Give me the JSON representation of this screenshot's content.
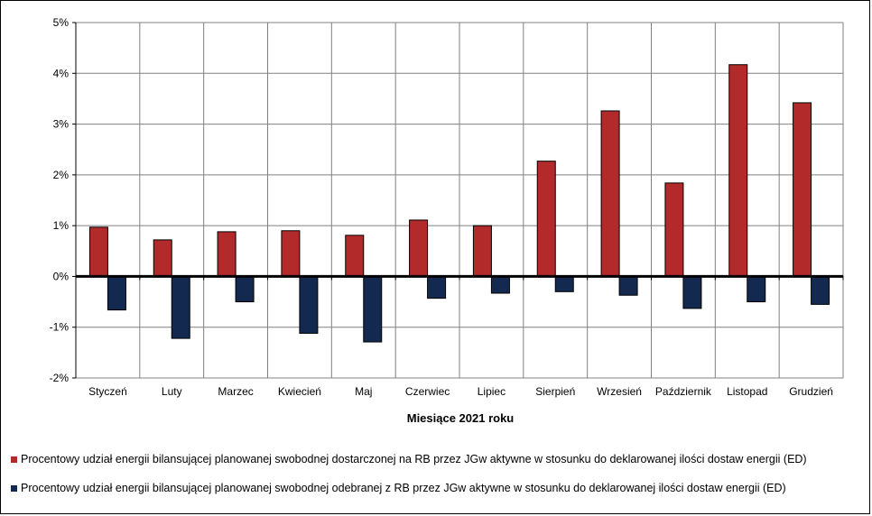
{
  "chart_data": {
    "type": "bar",
    "title": "",
    "xlabel": "Miesiące 2021 roku",
    "ylabel": "",
    "ylim": [
      -2,
      5
    ],
    "yticks": [
      "5%",
      "4%",
      "3%",
      "2%",
      "1%",
      "0%",
      "-1%",
      "-2%"
    ],
    "ytick_values": [
      5,
      4,
      3,
      2,
      1,
      0,
      -1,
      -2
    ],
    "grid": true,
    "legend_position": "bottom",
    "categories": [
      "Styczeń",
      "Luty",
      "Marzec",
      "Kwiecień",
      "Maj",
      "Czerwiec",
      "Lipiec",
      "Sierpień",
      "Wrzesień",
      "Październik",
      "Listopad",
      "Grudzień"
    ],
    "series": [
      {
        "name": "Procentowy udział energii bilansującej planowanej swobodnej dostarczonej na RB przez JGw aktywne w stosunku do deklarowanej ilości dostaw energii (ED)",
        "color": "#B22A2A",
        "values": [
          0.97,
          0.72,
          0.88,
          0.9,
          0.81,
          1.11,
          1.0,
          2.27,
          3.26,
          1.84,
          4.17,
          3.42
        ]
      },
      {
        "name": "Procentowy udział energii bilansującej planowanej swobodnej odebranej z RB przez JGw aktywne w stosunku do deklarowanej ilości dostaw energii (ED)",
        "color": "#13294F",
        "values": [
          -0.66,
          -1.22,
          -0.5,
          -1.12,
          -1.29,
          -0.43,
          -0.33,
          -0.3,
          -0.37,
          -0.63,
          -0.5,
          -0.55
        ]
      }
    ]
  }
}
